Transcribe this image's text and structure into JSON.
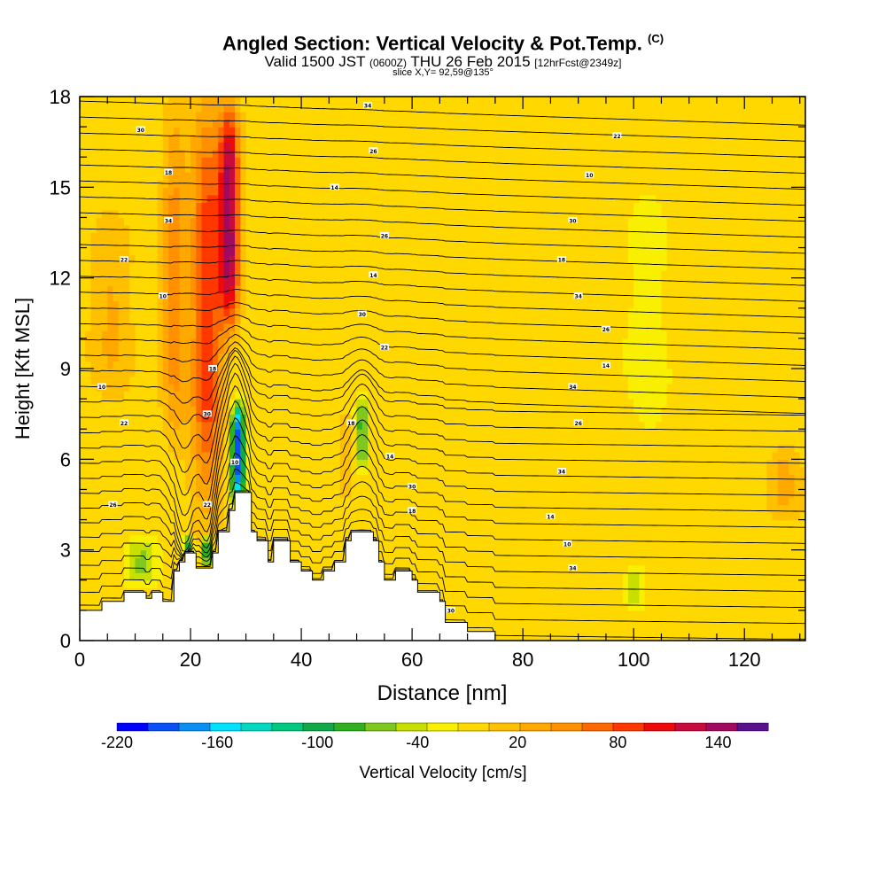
{
  "title": {
    "main": "Angled Section: Vertical Velocity & Pot.Temp.",
    "main_suffix": "(C)",
    "valid_prefix": "Valid 1500 JST",
    "valid_zulu": "(0600Z)",
    "valid_date": "THU 26 Feb 2015",
    "forecast_tag": "[12hrFcst@2349z]",
    "slice": "slice X,Y= 92,59@135°"
  },
  "chart_data": {
    "type": "heatmap",
    "xlabel": "Distance [nm]",
    "ylabel": "Height [Kft MSL]",
    "xlim": [
      0,
      131
    ],
    "ylim": [
      0,
      18
    ],
    "xticks": [
      "0",
      "20",
      "40",
      "60",
      "80",
      "100",
      "120"
    ],
    "xtick_values": [
      0,
      20,
      40,
      60,
      80,
      100,
      120
    ],
    "yticks": [
      "0",
      "3",
      "6",
      "9",
      "12",
      "15",
      "18"
    ],
    "ytick_values": [
      0,
      3,
      6,
      9,
      12,
      15,
      18
    ],
    "colorbar": {
      "label": "Vertical Velocity [cm/s]",
      "tick_labels": [
        "-220",
        "-160",
        "-100",
        "-40",
        "20",
        "80",
        "140"
      ],
      "tick_values": [
        -220,
        -160,
        -100,
        -40,
        20,
        80,
        140
      ],
      "range": [
        -220,
        170
      ],
      "step": 20,
      "colors": [
        "#0000ff",
        "#0a50f5",
        "#0a90f0",
        "#00e0ff",
        "#00d8c0",
        "#00c880",
        "#10a848",
        "#30b020",
        "#80c820",
        "#c8e000",
        "#f8f000",
        "#ffd800",
        "#ffc000",
        "#ffa800",
        "#ff9000",
        "#ff6800",
        "#ff3800",
        "#ee0a0a",
        "#c80a3c",
        "#a00a60",
        "#58108c"
      ]
    },
    "terrain_kft": [
      [
        0,
        1.0
      ],
      [
        4,
        1.0
      ],
      [
        4,
        1.3
      ],
      [
        8,
        1.3
      ],
      [
        8,
        1.6
      ],
      [
        12,
        1.6
      ],
      [
        12,
        1.4
      ],
      [
        13,
        1.4
      ],
      [
        13,
        1.6
      ],
      [
        15,
        1.6
      ],
      [
        15,
        1.3
      ],
      [
        17,
        1.3
      ],
      [
        17,
        2.3
      ],
      [
        18,
        2.3
      ],
      [
        18,
        2.6
      ],
      [
        19,
        2.6
      ],
      [
        19,
        2.9
      ],
      [
        21,
        2.9
      ],
      [
        21,
        2.4
      ],
      [
        24,
        2.4
      ],
      [
        24,
        2.9
      ],
      [
        25,
        2.9
      ],
      [
        25,
        3.6
      ],
      [
        27,
        3.6
      ],
      [
        27,
        4.3
      ],
      [
        28,
        4.3
      ],
      [
        28,
        4.9
      ],
      [
        31,
        4.9
      ],
      [
        31,
        3.6
      ],
      [
        32,
        3.6
      ],
      [
        32,
        3.3
      ],
      [
        34,
        3.3
      ],
      [
        34,
        2.6
      ],
      [
        35,
        2.6
      ],
      [
        35,
        3.3
      ],
      [
        38,
        3.3
      ],
      [
        38,
        2.6
      ],
      [
        40,
        2.6
      ],
      [
        40,
        2.3
      ],
      [
        42,
        2.3
      ],
      [
        42,
        2.0
      ],
      [
        44,
        2.0
      ],
      [
        44,
        2.3
      ],
      [
        46,
        2.3
      ],
      [
        46,
        2.6
      ],
      [
        48,
        2.6
      ],
      [
        48,
        3.3
      ],
      [
        49,
        3.3
      ],
      [
        49,
        3.6
      ],
      [
        53,
        3.6
      ],
      [
        53,
        3.3
      ],
      [
        54,
        3.3
      ],
      [
        54,
        2.6
      ],
      [
        55,
        2.6
      ],
      [
        55,
        2.0
      ],
      [
        57,
        2.0
      ],
      [
        57,
        2.3
      ],
      [
        60,
        2.3
      ],
      [
        60,
        2.0
      ],
      [
        61,
        2.0
      ],
      [
        61,
        1.6
      ],
      [
        65,
        1.6
      ],
      [
        65,
        1.3
      ],
      [
        66,
        1.3
      ],
      [
        66,
        0.6
      ],
      [
        70,
        0.6
      ],
      [
        70,
        0.3
      ],
      [
        75,
        0.3
      ],
      [
        75,
        0
      ],
      [
        131,
        0
      ]
    ],
    "background_value": 10,
    "features": [
      {
        "x": 17,
        "z_top": 18,
        "z_bottom": 6,
        "width_nm": 5,
        "value": 70
      },
      {
        "x": 23,
        "z_top": 18,
        "z_bottom": 4,
        "width_nm": 6,
        "value": 110
      },
      {
        "x": 27,
        "z_top": 18,
        "z_bottom": 10,
        "width_nm": 4,
        "value": 165
      },
      {
        "x": 28.5,
        "z_top": 8,
        "z_bottom": 4.5,
        "width_nm": 2.5,
        "value": -190
      },
      {
        "x": 19.5,
        "z_top": 3.5,
        "z_bottom": 2.6,
        "width_nm": 2,
        "value": -90
      },
      {
        "x": 23,
        "z_top": 3.5,
        "z_bottom": 2.4,
        "width_nm": 2,
        "value": -110
      },
      {
        "x": 11,
        "z_top": 3.5,
        "z_bottom": 1.8,
        "width_nm": 6,
        "value": -40
      },
      {
        "x": 51,
        "z_top": 8,
        "z_bottom": 5.5,
        "width_nm": 2,
        "value": -80
      },
      {
        "x": 48,
        "z_top": 8,
        "z_bottom": 4.5,
        "width_nm": 1.5,
        "value": 50
      },
      {
        "x": 100,
        "z_top": 2.5,
        "z_bottom": 1,
        "width_nm": 4,
        "value": -30
      },
      {
        "x": 102,
        "z_top": 15,
        "z_bottom": 6,
        "width_nm": 10,
        "value": -5
      },
      {
        "x": 127,
        "z_top": 6.5,
        "z_bottom": 4,
        "width_nm": 6,
        "value": 45
      },
      {
        "x": 6,
        "z_top": 14,
        "z_bottom": 8,
        "width_nm": 8,
        "value": 40
      }
    ],
    "contour_labels": [
      "34",
      "30",
      "26",
      "22",
      "18",
      "14",
      "10"
    ]
  }
}
